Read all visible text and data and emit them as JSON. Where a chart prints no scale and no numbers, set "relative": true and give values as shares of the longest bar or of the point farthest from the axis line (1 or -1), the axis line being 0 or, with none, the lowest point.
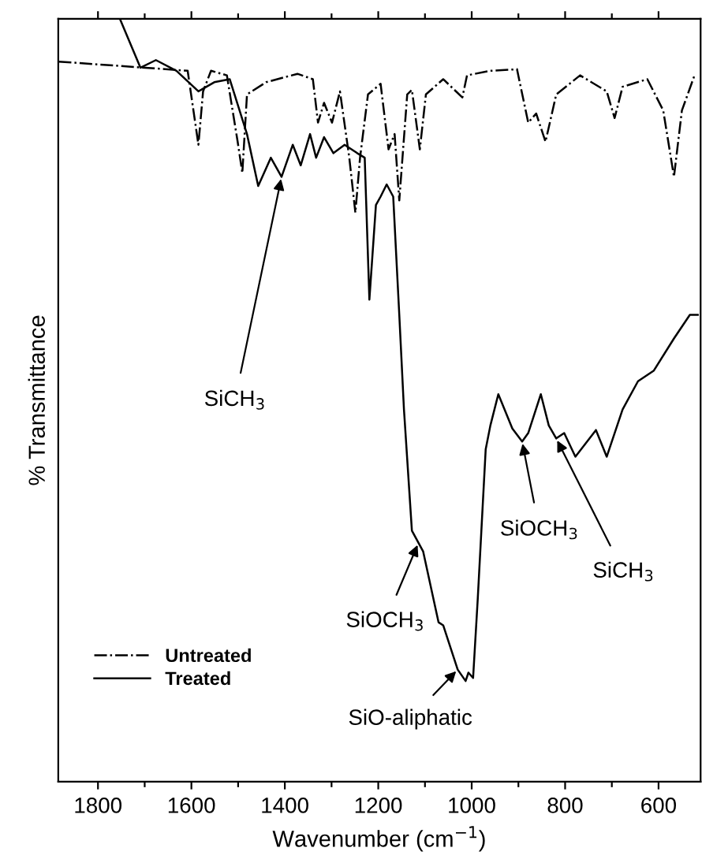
{
  "chart_data": {
    "type": "line",
    "relative": true,
    "xlabel": "Wavenumber (cm$^{−1}$)",
    "ylabel": "% Transmittance",
    "xlim": [
      1885,
      510
    ],
    "xticks": [
      1800,
      {
        "value": 1700,
        "label": null
      },
      1600,
      {
        "value": 1500,
        "label": null
      },
      1400,
      {
        "value": 1300,
        "label": null
      },
      1200,
      {
        "value": 1100,
        "label": null
      },
      1000,
      {
        "value": 900,
        "label": null
      },
      800,
      {
        "value": 700,
        "label": null
      },
      600
    ],
    "tick_labels": "x",
    "grid": false,
    "legend": "bottom left",
    "marker": "none",
    "series": [
      {
        "name": "Untreated",
        "color": "#000000",
        "line_style": "dashdot",
        "x": [
          1884,
          1608,
          1585,
          1575,
          1558,
          1524,
          1501,
          1491,
          1481,
          1440,
          1373,
          1340,
          1329,
          1316,
          1299,
          1282,
          1262,
          1249,
          1239,
          1222,
          1195,
          1178,
          1165,
          1155,
          1138,
          1128,
          1111,
          1098,
          1061,
          1020,
          1010,
          960,
          903,
          879,
          862,
          842,
          819,
          768,
          711,
          694,
          677,
          624,
          590,
          567,
          550,
          523
        ],
        "values": [
          0.944,
          0.932,
          0.835,
          0.905,
          0.932,
          0.926,
          0.839,
          0.798,
          0.901,
          0.917,
          0.928,
          0.921,
          0.864,
          0.89,
          0.864,
          0.905,
          0.818,
          0.746,
          0.818,
          0.901,
          0.915,
          0.829,
          0.849,
          0.762,
          0.901,
          0.907,
          0.829,
          0.901,
          0.921,
          0.897,
          0.926,
          0.932,
          0.934,
          0.864,
          0.876,
          0.839,
          0.901,
          0.926,
          0.905,
          0.87,
          0.911,
          0.921,
          0.88,
          0.793,
          0.88,
          0.926
        ]
      },
      {
        "name": "Treated",
        "color": "#000000",
        "line_style": "solid",
        "x": [
          1753,
          1709,
          1676,
          1632,
          1585,
          1551,
          1518,
          1481,
          1457,
          1430,
          1407,
          1383,
          1366,
          1346,
          1333,
          1316,
          1296,
          1272,
          1245,
          1229,
          1219,
          1205,
          1195,
          1182,
          1168,
          1155,
          1145,
          1128,
          1104,
          1071,
          1061,
          1030,
          1013,
          1007,
          997,
          987,
          970,
          960,
          943,
          913,
          892,
          879,
          852,
          835,
          819,
          802,
          778,
          734,
          711,
          677,
          644,
          610,
          567,
          533,
          516
        ],
        "values": [
          1.0,
          0.936,
          0.946,
          0.932,
          0.905,
          0.917,
          0.921,
          0.849,
          0.781,
          0.818,
          0.793,
          0.835,
          0.808,
          0.849,
          0.818,
          0.845,
          0.824,
          0.835,
          0.824,
          0.818,
          0.632,
          0.756,
          0.767,
          0.783,
          0.767,
          0.612,
          0.488,
          0.329,
          0.302,
          0.209,
          0.205,
          0.147,
          0.132,
          0.143,
          0.136,
          0.24,
          0.436,
          0.467,
          0.508,
          0.463,
          0.446,
          0.457,
          0.508,
          0.467,
          0.45,
          0.457,
          0.426,
          0.461,
          0.426,
          0.488,
          0.525,
          0.539,
          0.581,
          0.612,
          0.612
        ]
      }
    ],
    "annotations": [
      {
        "text": "SiCH$_{3}$",
        "x": 1407,
        "y": 0.793
      },
      {
        "text": "SiOCH$_{3}$",
        "x": 1114,
        "y": 0.313
      },
      {
        "text": "SiO-aliphatic",
        "x": 1030,
        "y": 0.147
      },
      {
        "text": "SiOCH$_{3}$",
        "x": 892,
        "y": 0.446
      },
      {
        "text": "SiCH$_{3}$",
        "x": 819,
        "y": 0.45
      }
    ]
  }
}
